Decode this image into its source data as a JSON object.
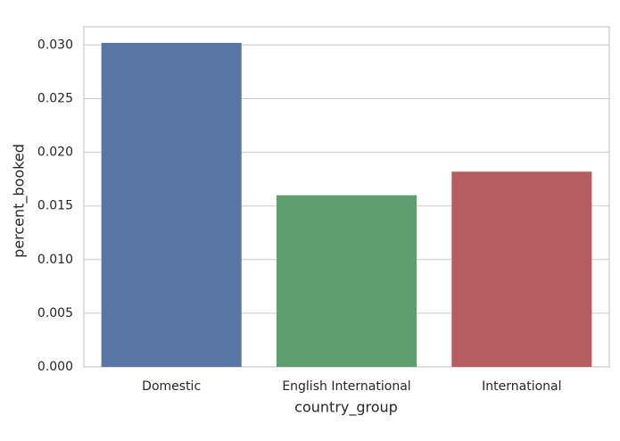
{
  "chart_data": {
    "type": "bar",
    "xlabel": "country_group",
    "ylabel": "percent_booked",
    "categories": [
      "Domestic",
      "English International",
      "International"
    ],
    "values": [
      0.0302,
      0.016,
      0.0182
    ],
    "colors": [
      "#5875a4",
      "#5f9e6e",
      "#b55d60"
    ],
    "ylim": [
      0,
      0.0317
    ],
    "yticks": [
      {
        "value": 0,
        "label": "0.000"
      },
      {
        "value": 0.005,
        "label": "0.005"
      },
      {
        "value": 0.01,
        "label": "0.010"
      },
      {
        "value": 0.015,
        "label": "0.015"
      },
      {
        "value": 0.02,
        "label": "0.020"
      },
      {
        "value": 0.025,
        "label": "0.025"
      },
      {
        "value": 0.03,
        "label": "0.030"
      }
    ],
    "grid": true
  }
}
